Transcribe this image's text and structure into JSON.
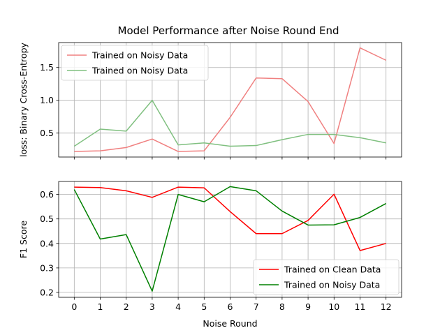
{
  "title": "Model Performance after Noise Round End",
  "chart_data": [
    {
      "type": "line",
      "title": "Model Performance after Noise Round End",
      "xlabel": "",
      "ylabel": "loss: Binary Cross-Entropy",
      "x": [
        0,
        1,
        2,
        3,
        4,
        5,
        6,
        7,
        8,
        9,
        10,
        11,
        12
      ],
      "xlim": [
        -0.6,
        12.6
      ],
      "ylim": [
        0.135,
        1.88
      ],
      "yticks": [
        0.5,
        1.0,
        1.5
      ],
      "ytick_labels": [
        "0.5",
        "1.0",
        "1.5"
      ],
      "grid": true,
      "legend_position": "upper-left",
      "series": [
        {
          "name": "Trained on Noisy Data",
          "color": "#f08080",
          "values": [
            0.22,
            0.23,
            0.28,
            0.41,
            0.22,
            0.23,
            0.74,
            1.34,
            1.33,
            0.98,
            0.34,
            1.8,
            1.61
          ]
        },
        {
          "name": "Trained on Noisy Data",
          "color": "#80c080",
          "values": [
            0.3,
            0.56,
            0.53,
            1.0,
            0.32,
            0.35,
            0.3,
            0.31,
            0.4,
            0.48,
            0.48,
            0.43,
            0.35
          ]
        }
      ]
    },
    {
      "type": "line",
      "title": "",
      "xlabel": "Noise Round",
      "ylabel": "F1 Score",
      "x": [
        0,
        1,
        2,
        3,
        4,
        5,
        6,
        7,
        8,
        9,
        10,
        11,
        12
      ],
      "x_tick_labels": [
        "0",
        "1",
        "2",
        "3",
        "4",
        "5",
        "6",
        "7",
        "8",
        "9",
        "10",
        "11",
        "12"
      ],
      "xlim": [
        -0.6,
        12.6
      ],
      "ylim": [
        0.18,
        0.653
      ],
      "yticks": [
        0.2,
        0.3,
        0.4,
        0.5,
        0.6
      ],
      "ytick_labels": [
        "0.2",
        "0.3",
        "0.4",
        "0.5",
        "0.6"
      ],
      "grid": true,
      "legend_position": "lower-right",
      "series": [
        {
          "name": "Trained on Clean Data",
          "color": "#ff0000",
          "values": [
            0.63,
            0.628,
            0.615,
            0.588,
            0.63,
            0.627,
            0.53,
            0.44,
            0.44,
            0.494,
            0.601,
            0.371,
            0.4
          ]
        },
        {
          "name": "Trained on Noisy Data",
          "color": "#008000",
          "values": [
            0.62,
            0.418,
            0.436,
            0.205,
            0.6,
            0.57,
            0.632,
            0.615,
            0.532,
            0.475,
            0.476,
            0.506,
            0.563
          ]
        }
      ]
    }
  ]
}
